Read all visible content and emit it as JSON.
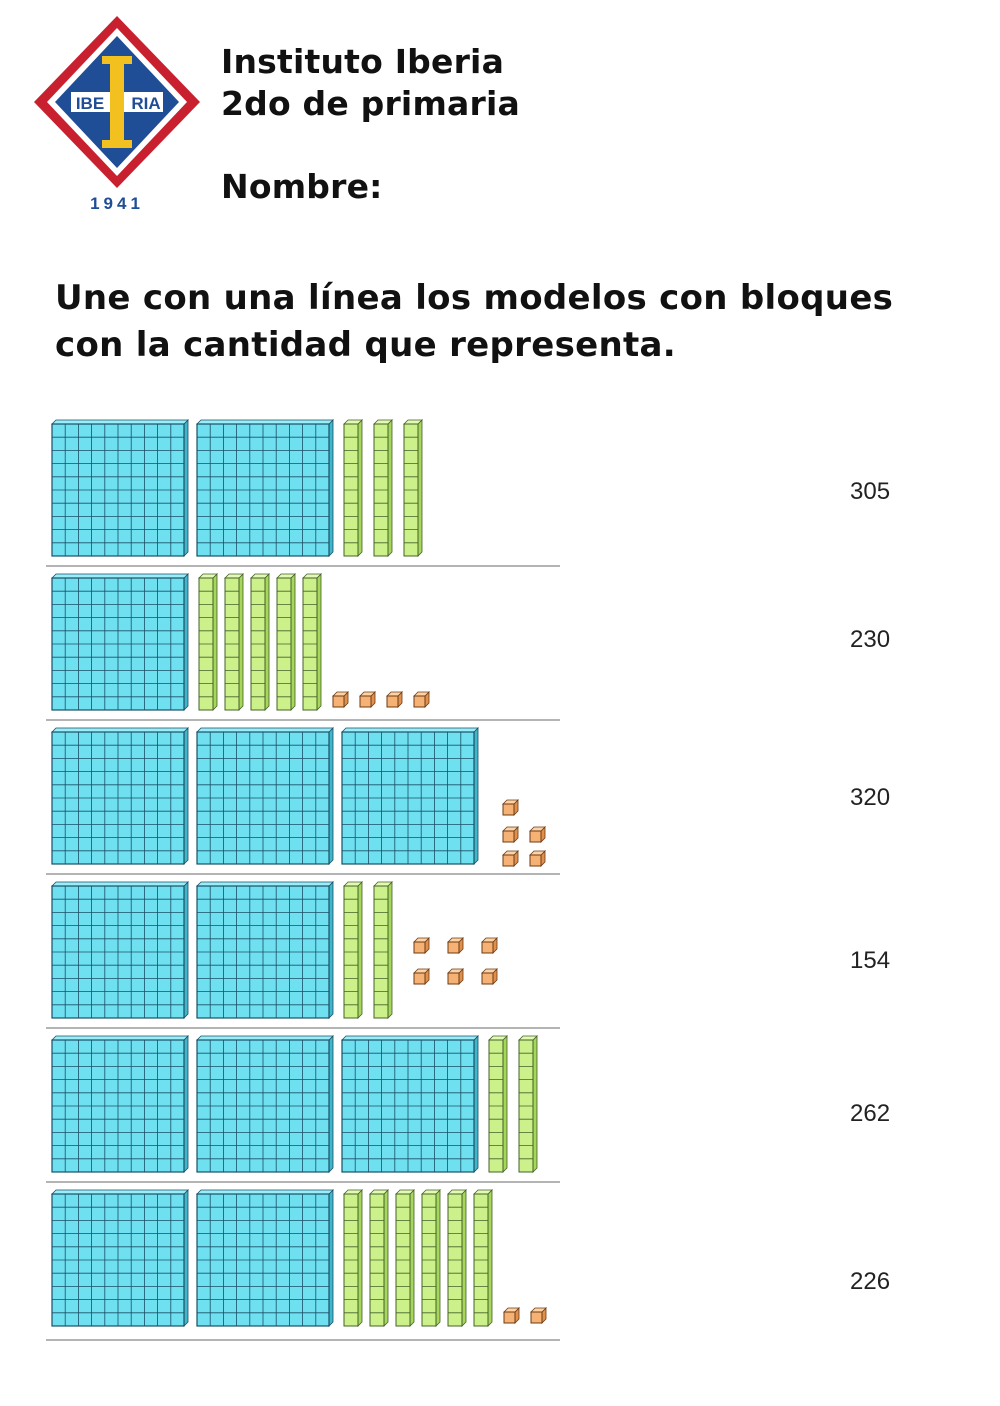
{
  "logo": {
    "text": "IBERIA",
    "letter": "I",
    "year": "1941",
    "colors": {
      "outer": "#c8202f",
      "inner": "#1f4d96",
      "letter": "#f2c01f"
    }
  },
  "header": {
    "school": "Instituto Iberia",
    "grade": "2do de primaria",
    "name_label": "Nombre:"
  },
  "instructions": {
    "line1": "Une con una línea los modelos con bloques",
    "line2": "con la cantidad que representa."
  },
  "colors": {
    "hundred": "#6fe0f0",
    "ten": "#ccf08a",
    "one": "#f5b274",
    "grid": "#1a4f66",
    "separator": "#888888"
  },
  "models": [
    {
      "hundreds": 2,
      "tens": 3,
      "ones": 0
    },
    {
      "hundreds": 1,
      "tens": 5,
      "ones": 4
    },
    {
      "hundreds": 3,
      "tens": 0,
      "ones": 5
    },
    {
      "hundreds": 2,
      "tens": 2,
      "ones": 6
    },
    {
      "hundreds": 3,
      "tens": 2,
      "ones": 0
    },
    {
      "hundreds": 2,
      "tens": 6,
      "ones": 2
    }
  ],
  "answers": [
    "305",
    "230",
    "320",
    "154",
    "262",
    "226"
  ]
}
